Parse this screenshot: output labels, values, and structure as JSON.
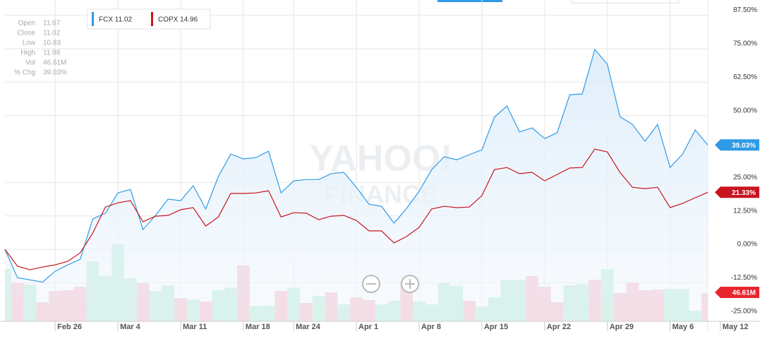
{
  "chart_data": {
    "type": "line",
    "categories": [
      null,
      null,
      null,
      null,
      "Feb 26",
      null,
      null,
      null,
      null,
      "Mar 4",
      null,
      null,
      null,
      null,
      "Mar 11",
      null,
      null,
      null,
      null,
      "Mar 18",
      null,
      null,
      null,
      "Mar 24",
      null,
      null,
      null,
      null,
      "Apr 1",
      null,
      null,
      null,
      null,
      "Apr 8",
      null,
      null,
      null,
      null,
      "Apr 15",
      null,
      null,
      null,
      null,
      "Apr 22",
      null,
      null,
      null,
      null,
      "Apr 29",
      null,
      null,
      null,
      null,
      "May 6",
      null,
      null,
      null,
      "May 12"
    ],
    "series": [
      {
        "name": "FCX 11.02",
        "color": "#2f9be6",
        "end_label": "39.03%",
        "values": [
          0,
          -10.6,
          -11.4,
          -12.2,
          -8.2,
          -5.8,
          -3.7,
          11.4,
          13.5,
          21.1,
          22.4,
          7.4,
          12.7,
          18.8,
          18.2,
          23.8,
          15.1,
          27.2,
          35.6,
          33.8,
          34.3,
          36.7,
          21.1,
          25.6,
          26.1,
          26.1,
          28.3,
          28.8,
          23.2,
          16.9,
          16.1,
          9.8,
          15.3,
          21.7,
          29.8,
          34.6,
          33.5,
          35.4,
          37.2,
          49.4,
          53.6,
          43.9,
          45.4,
          41.4,
          43.6,
          57.8,
          58.1,
          74.7,
          69.2,
          49.6,
          46.7,
          40.4,
          46.7,
          30.6,
          35.6,
          44.6,
          39.03,
          null
        ]
      },
      {
        "name": "COPX 14.96",
        "color": "#c9141e",
        "end_label": "21.33%",
        "values": [
          0,
          -6.3,
          -7.6,
          -6.6,
          -5.8,
          -4.5,
          -1.3,
          6.1,
          15.8,
          17.4,
          18.2,
          10.3,
          12.4,
          12.7,
          14.8,
          15.6,
          8.7,
          12.1,
          20.9,
          20.9,
          21.1,
          21.9,
          12.1,
          13.7,
          13.5,
          11.1,
          12.4,
          12.7,
          10.8,
          6.9,
          6.9,
          2.4,
          4.8,
          8.2,
          15.1,
          16.1,
          15.6,
          15.8,
          20.1,
          29.8,
          30.6,
          28.3,
          28.8,
          25.6,
          28.0,
          30.4,
          30.6,
          37.5,
          36.4,
          28.8,
          23.2,
          22.7,
          23.2,
          15.6,
          17.2,
          19.3,
          21.33,
          null
        ]
      }
    ],
    "volume": {
      "values": [
        86.2,
        64.1,
        60.6,
        31.5,
        50.1,
        51.3,
        57.1,
        99.0,
        74.6,
        127.0,
        71.1,
        62.9,
        50.1,
        59.4,
        38.4,
        36.1,
        32.6,
        51.3,
        55.9,
        92.0,
        25.6,
        25.6,
        50.1,
        55.9,
        30.3,
        41.9,
        47.8,
        28.0,
        39.6,
        35.0,
        28.0,
        33.8,
        66.4,
        32.6,
        28.0,
        62.9,
        58.3,
        33.8,
        24.5,
        39.6,
        68.7,
        68.7,
        74.6,
        57.1,
        31.5,
        59.4,
        61.7,
        68.7,
        86.2,
        46.6,
        64.1,
        51.3,
        52.4,
        53.6,
        53.6,
        17.5,
        46.61,
        null
      ],
      "end_label": "46.61M",
      "colors": [
        "#b5ead5",
        "#f7b6c2",
        "#b5ead5",
        "#f7b6c2",
        "#f7b6c2",
        "#f7b6c2",
        "#f7b6c2",
        "#b5ead5",
        "#b5ead5",
        "#b5ead5",
        "#b5ead5",
        "#f7b6c2",
        "#b5ead5",
        "#b5ead5",
        "#f7b6c2",
        "#b5ead5",
        "#f7b6c2",
        "#b5ead5",
        "#b5ead5",
        "#f7b6c2",
        "#b5ead5",
        "#b5ead5",
        "#f7b6c2",
        "#b5ead5",
        "#f7b6c2",
        "#b5ead5",
        "#f7b6c2",
        "#b5ead5",
        "#f7b6c2",
        "#f7b6c2",
        "#b5ead5",
        "#b5ead5",
        "#f7b6c2",
        "#b5ead5",
        "#b5ead5",
        "#b5ead5",
        "#b5ead5",
        "#f7b6c2",
        "#b5ead5",
        "#b5ead5",
        "#b5ead5",
        "#b5ead5",
        "#f7b6c2",
        "#f7b6c2",
        "#f7b6c2",
        "#b5ead5",
        "#b5ead5",
        "#f7b6c2",
        "#b5ead5",
        "#f7b6c2",
        "#f7b6c2",
        "#f7b6c2",
        "#f7b6c2",
        "#b5ead5",
        "#b5ead5",
        "#b5ead5",
        "#f7b6c2",
        null
      ]
    },
    "ylim": [
      -26.9,
      93.2
    ],
    "yticks": [
      {
        "value": 87.5,
        "label": "87.50%"
      },
      {
        "value": 75,
        "label": "75.00%"
      },
      {
        "value": 62.5,
        "label": "62.50%"
      },
      {
        "value": 50,
        "label": "50.00%"
      },
      {
        "value": 25,
        "label": "25.00%"
      },
      {
        "value": 12.5,
        "label": "12.50%"
      },
      {
        "value": 0,
        "label": "0.00%"
      },
      {
        "value": -12.5,
        "label": "-12.50%"
      },
      {
        "value": -25,
        "label": "-25.00%"
      }
    ],
    "grid": true,
    "info": [
      {
        "label": "Open",
        "value": "11.67"
      },
      {
        "label": "Close",
        "value": "11.02"
      },
      {
        "label": "Low",
        "value": "10.83"
      },
      {
        "label": "High",
        "value": "11.98"
      },
      {
        "label": "Vol",
        "value": "46.61M"
      },
      {
        "label": "% Chg",
        "value": "39.03%"
      }
    ],
    "watermark": [
      "YAHOO!",
      "FINANCE"
    ]
  }
}
